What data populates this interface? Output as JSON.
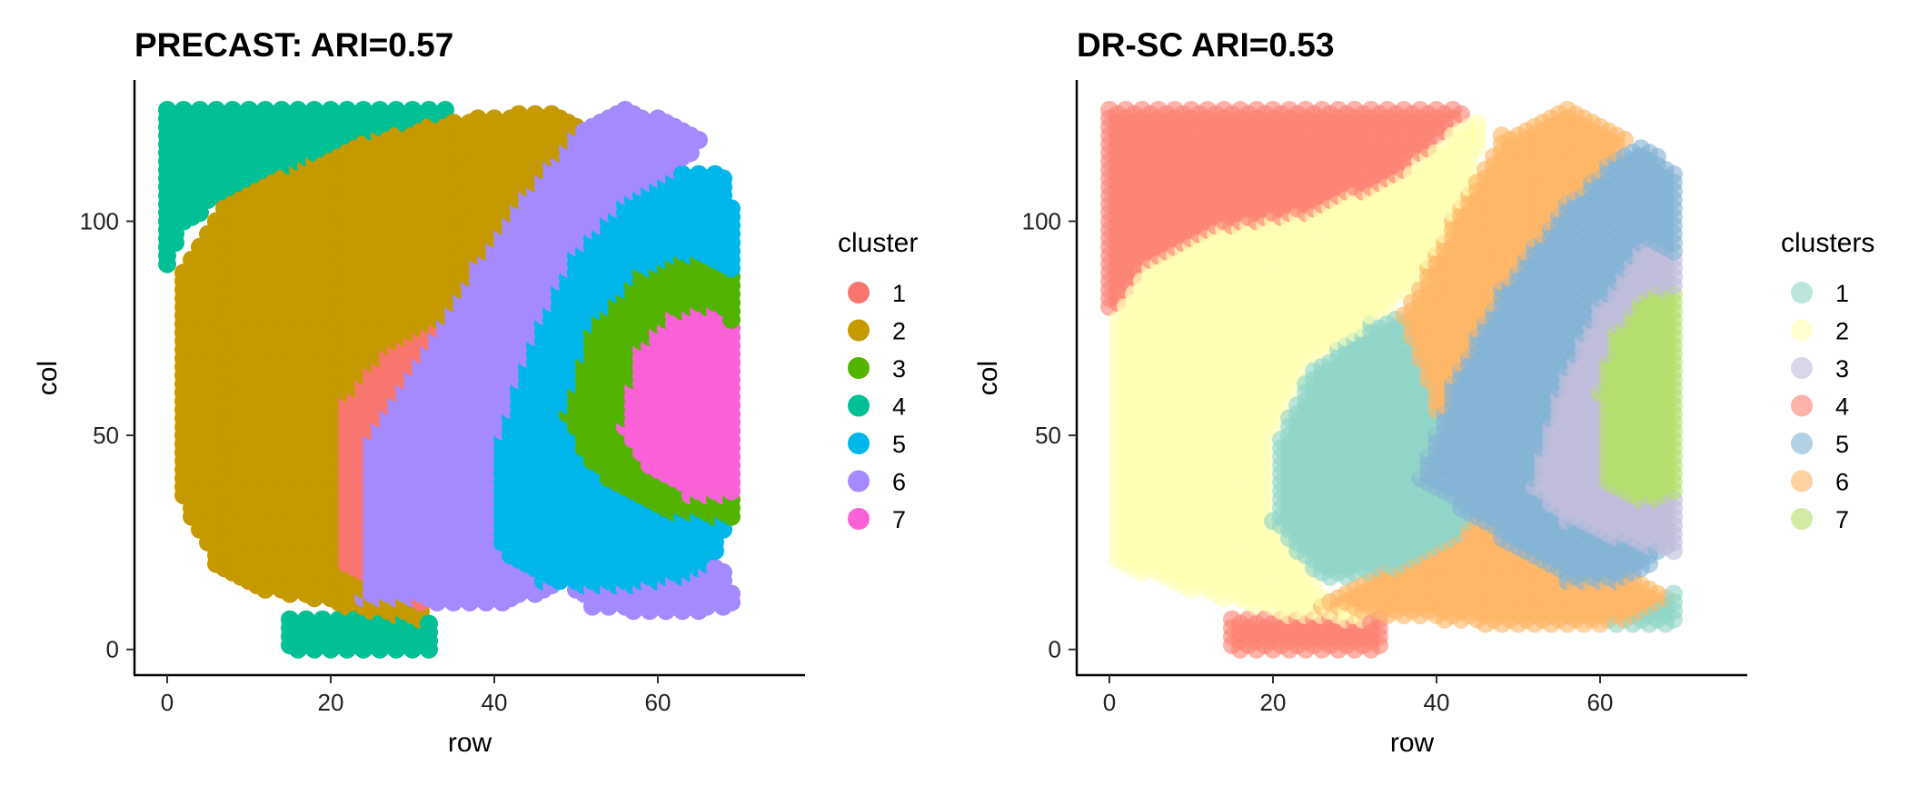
{
  "chart_data": [
    {
      "type": "scatter",
      "title": "PRECAST: ARI=0.57",
      "xlabel": "row",
      "ylabel": "col",
      "xlim": [
        -4,
        78
      ],
      "ylim": [
        -6,
        133
      ],
      "xticks": [
        0,
        20,
        40,
        60
      ],
      "yticks": [
        0,
        50,
        100
      ],
      "grid": false,
      "legend_position": "right",
      "legend_title": "cluster",
      "point_alpha": 1.0,
      "series": [
        {
          "name": "1",
          "color": "#F8766D"
        },
        {
          "name": "2",
          "color": "#C49A00"
        },
        {
          "name": "3",
          "color": "#53B400"
        },
        {
          "name": "4",
          "color": "#00C094"
        },
        {
          "name": "5",
          "color": "#00B6EB"
        },
        {
          "name": "6",
          "color": "#A58AFF"
        },
        {
          "name": "7",
          "color": "#FB61D7"
        }
      ],
      "regions": [
        {
          "cluster": "4",
          "polygon": [
            [
              0,
              88
            ],
            [
              0,
              127
            ],
            [
              38,
              127
            ],
            [
              24,
              120
            ],
            [
              14,
              112
            ],
            [
              6,
              105
            ],
            [
              2,
              98
            ]
          ]
        },
        {
          "cluster": "4",
          "polygon": [
            [
              15,
              0
            ],
            [
              33,
              0
            ],
            [
              33,
              6
            ],
            [
              26,
              8
            ],
            [
              15,
              8
            ]
          ]
        },
        {
          "cluster": "2",
          "polygon": [
            [
              1,
              40
            ],
            [
              2,
              88
            ],
            [
              7,
              104
            ],
            [
              15,
              112
            ],
            [
              26,
              120
            ],
            [
              38,
              124
            ],
            [
              48,
              126
            ],
            [
              54,
              118
            ],
            [
              47,
              100
            ],
            [
              40,
              85
            ],
            [
              35,
              60
            ],
            [
              30,
              40
            ],
            [
              26,
              20
            ],
            [
              33,
              6
            ],
            [
              22,
              10
            ],
            [
              12,
              14
            ],
            [
              6,
              20
            ],
            [
              3,
              30
            ]
          ]
        },
        {
          "cluster": "1",
          "polygon": [
            [
              22,
              20
            ],
            [
              22,
              58
            ],
            [
              27,
              70
            ],
            [
              33,
              76
            ],
            [
              39,
              58
            ],
            [
              43,
              40
            ],
            [
              41,
              22
            ],
            [
              36,
              12
            ],
            [
              30,
              10
            ]
          ]
        },
        {
          "cluster": "6",
          "polygon": [
            [
              24,
              12
            ],
            [
              25,
              50
            ],
            [
              32,
              70
            ],
            [
              38,
              90
            ],
            [
              44,
              106
            ],
            [
              50,
              120
            ],
            [
              56,
              127
            ],
            [
              66,
              120
            ],
            [
              60,
              106
            ],
            [
              52,
              92
            ],
            [
              46,
              70
            ],
            [
              42,
              40
            ],
            [
              44,
              20
            ],
            [
              52,
              10
            ],
            [
              62,
              8
            ],
            [
              70,
              10
            ],
            [
              68,
              20
            ],
            [
              52,
              16
            ],
            [
              40,
              10
            ]
          ]
        },
        {
          "cluster": "5",
          "polygon": [
            [
              40,
              25
            ],
            [
              41,
              50
            ],
            [
              45,
              72
            ],
            [
              50,
              92
            ],
            [
              56,
              104
            ],
            [
              62,
              112
            ],
            [
              68,
              112
            ],
            [
              70,
              95
            ],
            [
              70,
              35
            ],
            [
              66,
              18
            ],
            [
              56,
              14
            ],
            [
              46,
              16
            ]
          ]
        },
        {
          "cluster": "3",
          "polygon": [
            [
              49,
              55
            ],
            [
              52,
              75
            ],
            [
              58,
              88
            ],
            [
              64,
              92
            ],
            [
              70,
              88
            ],
            [
              70,
              30
            ],
            [
              62,
              32
            ],
            [
              55,
              38
            ],
            [
              51,
              46
            ]
          ]
        },
        {
          "cluster": "7",
          "polygon": [
            [
              56,
              52
            ],
            [
              58,
              70
            ],
            [
              62,
              78
            ],
            [
              68,
              80
            ],
            [
              70,
              74
            ],
            [
              70,
              36
            ],
            [
              64,
              36
            ],
            [
              59,
              42
            ]
          ]
        }
      ]
    },
    {
      "type": "scatter",
      "title": "DR-SC ARI=0.53",
      "xlabel": "row",
      "ylabel": "col",
      "xlim": [
        -4,
        78
      ],
      "ylim": [
        -6,
        133
      ],
      "xticks": [
        0,
        20,
        40,
        60
      ],
      "yticks": [
        0,
        50,
        100
      ],
      "grid": false,
      "legend_position": "right",
      "legend_title": "clusters",
      "point_alpha": 0.6,
      "series": [
        {
          "name": "1",
          "color": "#8DD3C7"
        },
        {
          "name": "2",
          "color": "#FFFFB3"
        },
        {
          "name": "3",
          "color": "#BEBADA"
        },
        {
          "name": "4",
          "color": "#FB8072"
        },
        {
          "name": "5",
          "color": "#80B1D3"
        },
        {
          "name": "6",
          "color": "#FDB462"
        },
        {
          "name": "7",
          "color": "#B3DE69"
        }
      ],
      "regions": [
        {
          "cluster": "4",
          "polygon": [
            [
              0,
              78
            ],
            [
              0,
              127
            ],
            [
              44,
              127
            ],
            [
              40,
              118
            ],
            [
              34,
              108
            ],
            [
              24,
              100
            ],
            [
              12,
              96
            ],
            [
              4,
              88
            ]
          ]
        },
        {
          "cluster": "4",
          "polygon": [
            [
              15,
              0
            ],
            [
              34,
              0
            ],
            [
              34,
              8
            ],
            [
              15,
              8
            ]
          ]
        },
        {
          "cluster": "2",
          "polygon": [
            [
              1,
              20
            ],
            [
              1,
              78
            ],
            [
              5,
              90
            ],
            [
              14,
              98
            ],
            [
              25,
              102
            ],
            [
              35,
              110
            ],
            [
              42,
              120
            ],
            [
              46,
              126
            ],
            [
              44,
              104
            ],
            [
              38,
              86
            ],
            [
              32,
              76
            ],
            [
              24,
              66
            ],
            [
              20,
              50
            ],
            [
              20,
              30
            ],
            [
              26,
              14
            ],
            [
              34,
              6
            ],
            [
              22,
              8
            ],
            [
              10,
              14
            ]
          ]
        },
        {
          "cluster": "1",
          "polygon": [
            [
              20,
              30
            ],
            [
              21,
              50
            ],
            [
              25,
              66
            ],
            [
              32,
              76
            ],
            [
              38,
              80
            ],
            [
              40,
              60
            ],
            [
              44,
              46
            ],
            [
              48,
              36
            ],
            [
              45,
              24
            ],
            [
              35,
              18
            ],
            [
              26,
              16
            ]
          ]
        },
        {
          "cluster": "1",
          "polygon": [
            [
              55,
              6
            ],
            [
              70,
              6
            ],
            [
              70,
              14
            ],
            [
              58,
              12
            ]
          ]
        },
        {
          "cluster": "6",
          "polygon": [
            [
              26,
              10
            ],
            [
              31,
              16
            ],
            [
              42,
              24
            ],
            [
              48,
              36
            ],
            [
              40,
              56
            ],
            [
              36,
              78
            ],
            [
              42,
              100
            ],
            [
              48,
              120
            ],
            [
              56,
              127
            ],
            [
              64,
              120
            ],
            [
              58,
              104
            ],
            [
              50,
              86
            ],
            [
              46,
              64
            ],
            [
              52,
              46
            ],
            [
              60,
              20
            ],
            [
              70,
              12
            ],
            [
              62,
              6
            ],
            [
              46,
              6
            ],
            [
              34,
              8
            ]
          ]
        },
        {
          "cluster": "5",
          "polygon": [
            [
              38,
              40
            ],
            [
              42,
              62
            ],
            [
              48,
              84
            ],
            [
              56,
              104
            ],
            [
              62,
              115
            ],
            [
              66,
              118
            ],
            [
              70,
              110
            ],
            [
              70,
              26
            ],
            [
              64,
              16
            ],
            [
              56,
              16
            ],
            [
              48,
              26
            ]
          ]
        },
        {
          "cluster": "3",
          "polygon": [
            [
              52,
              38
            ],
            [
              55,
              60
            ],
            [
              60,
              80
            ],
            [
              66,
              96
            ],
            [
              70,
              92
            ],
            [
              70,
              22
            ],
            [
              62,
              26
            ],
            [
              56,
              30
            ]
          ]
        },
        {
          "cluster": "7",
          "polygon": [
            [
              61,
              38
            ],
            [
              60,
              60
            ],
            [
              62,
              74
            ],
            [
              66,
              84
            ],
            [
              70,
              84
            ],
            [
              70,
              36
            ],
            [
              65,
              34
            ]
          ]
        }
      ]
    }
  ]
}
